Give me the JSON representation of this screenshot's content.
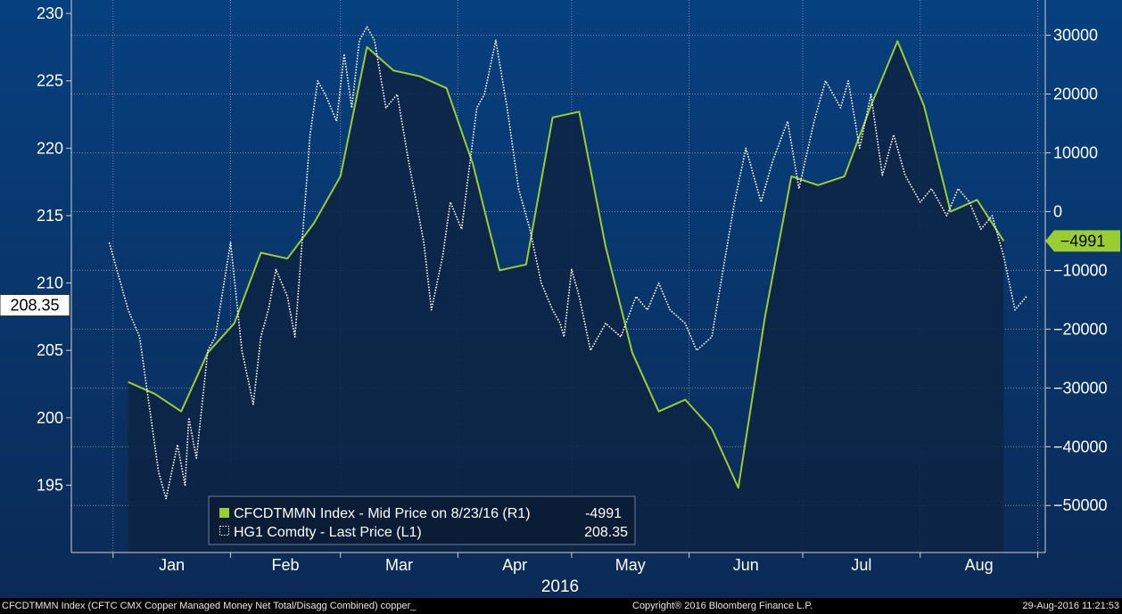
{
  "chart_data": {
    "type": "line",
    "year_label": "2016",
    "x_months": [
      "Jan",
      "Feb",
      "Mar",
      "Apr",
      "May",
      "Jun",
      "Jul",
      "Aug"
    ],
    "left_axis": {
      "ylim": [
        190,
        231
      ],
      "ticks": [
        195,
        200,
        205,
        210,
        215,
        220,
        225,
        230
      ]
    },
    "right_axis": {
      "ylim": [
        -58000,
        36000
      ],
      "ticks": [
        30000,
        20000,
        10000,
        0,
        -10000,
        -20000,
        -30000,
        -40000,
        -50000
      ]
    },
    "grid": true,
    "legend": {
      "placement": "bottom-center",
      "entries": [
        {
          "series": "green",
          "label": "CFCDTMMN Index - Mid Price on 8/23/16 (R1)",
          "value": "-4991"
        },
        {
          "series": "dotted",
          "label": "HG1 Comdty - Last Price (L1)",
          "value": "208.35"
        }
      ]
    },
    "last_value_labels": {
      "left": "208.35",
      "right": "-4991"
    },
    "series": [
      {
        "id": "green",
        "axis": "right",
        "color": "#9acd32",
        "style": "solid",
        "x": [
          "2016-01-05",
          "2016-01-12",
          "2016-01-19",
          "2016-01-26",
          "2016-02-02",
          "2016-02-09",
          "2016-02-16",
          "2016-02-23",
          "2016-03-01",
          "2016-03-08",
          "2016-03-15",
          "2016-03-22",
          "2016-03-29",
          "2016-04-05",
          "2016-04-12",
          "2016-04-19",
          "2016-04-26",
          "2016-05-03",
          "2016-05-10",
          "2016-05-17",
          "2016-05-24",
          "2016-05-31",
          "2016-06-07",
          "2016-06-14",
          "2016-06-21",
          "2016-06-28",
          "2016-07-05",
          "2016-07-12",
          "2016-07-19",
          "2016-07-26",
          "2016-08-02",
          "2016-08-09",
          "2016-08-16",
          "2016-08-23"
        ],
        "y": [
          -29000,
          -31000,
          -34000,
          -24000,
          -19000,
          -7000,
          -8000,
          -2000,
          6000,
          28000,
          24000,
          23000,
          21000,
          8000,
          -10000,
          -9000,
          16000,
          17000,
          -6000,
          -24000,
          -34000,
          -32000,
          -37000,
          -47000,
          -18000,
          6000,
          4500,
          6000,
          18000,
          29000,
          18000,
          0,
          2000,
          -5000
        ]
      },
      {
        "id": "dotted",
        "axis": "left",
        "color": "#ffffff",
        "style": "dotted",
        "x": [
          "2015-12-31",
          "2016-01-05",
          "2016-01-08",
          "2016-01-13",
          "2016-01-15",
          "2016-01-18",
          "2016-01-20",
          "2016-01-21",
          "2016-01-23",
          "2016-01-26",
          "2016-01-28",
          "2016-02-01",
          "2016-02-04",
          "2016-02-07",
          "2016-02-09",
          "2016-02-11",
          "2016-02-13",
          "2016-02-16",
          "2016-02-18",
          "2016-02-22",
          "2016-02-24",
          "2016-02-26",
          "2016-02-29",
          "2016-03-02",
          "2016-03-04",
          "2016-03-06",
          "2016-03-08",
          "2016-03-10",
          "2016-03-13",
          "2016-03-16",
          "2016-03-19",
          "2016-03-21",
          "2016-03-23",
          "2016-03-25",
          "2016-03-28",
          "2016-03-30",
          "2016-04-02",
          "2016-04-06",
          "2016-04-08",
          "2016-04-11",
          "2016-04-14",
          "2016-04-17",
          "2016-04-20",
          "2016-04-23",
          "2016-04-26",
          "2016-04-28",
          "2016-04-29",
          "2016-05-01",
          "2016-05-03",
          "2016-05-06",
          "2016-05-10",
          "2016-05-14",
          "2016-05-18",
          "2016-05-21",
          "2016-05-24",
          "2016-05-27",
          "2016-05-31",
          "2016-06-03",
          "2016-06-07",
          "2016-06-10",
          "2016-06-13",
          "2016-06-16",
          "2016-06-20",
          "2016-06-23",
          "2016-06-27",
          "2016-06-30",
          "2016-07-04",
          "2016-07-07",
          "2016-07-11",
          "2016-07-13",
          "2016-07-16",
          "2016-07-19",
          "2016-07-22",
          "2016-07-25",
          "2016-07-28",
          "2016-08-01",
          "2016-08-04",
          "2016-08-08",
          "2016-08-11",
          "2016-08-14",
          "2016-08-17",
          "2016-08-20",
          "2016-08-23",
          "2016-08-26",
          "2016-08-29"
        ],
        "y": [
          213,
          208,
          206,
          196,
          194,
          198,
          195,
          200,
          197,
          205,
          206,
          213,
          205,
          201,
          206,
          208,
          211,
          209,
          206,
          221,
          225,
          224,
          222,
          227,
          223,
          228,
          229,
          228,
          223,
          224,
          219,
          216,
          213,
          208,
          212,
          216,
          214,
          223,
          224,
          228,
          223,
          217,
          214,
          210,
          208,
          207,
          206,
          211,
          209,
          205,
          207,
          206,
          209,
          208,
          210,
          208,
          207,
          205,
          206,
          211,
          216,
          220,
          216,
          219,
          222,
          217,
          222,
          225,
          223,
          225,
          220,
          224,
          218,
          221,
          218,
          216,
          217,
          215,
          217,
          216,
          214,
          215,
          212,
          208,
          209
        ]
      }
    ]
  },
  "footer": {
    "left": "CFCDTMMN Index (CFTC CMX Copper Managed Money Net Total/Disagg Combined) copper_",
    "center": "Copyright® 2016 Bloomberg Finance L.P.",
    "right": "29-Aug-2016 11:21:53"
  }
}
